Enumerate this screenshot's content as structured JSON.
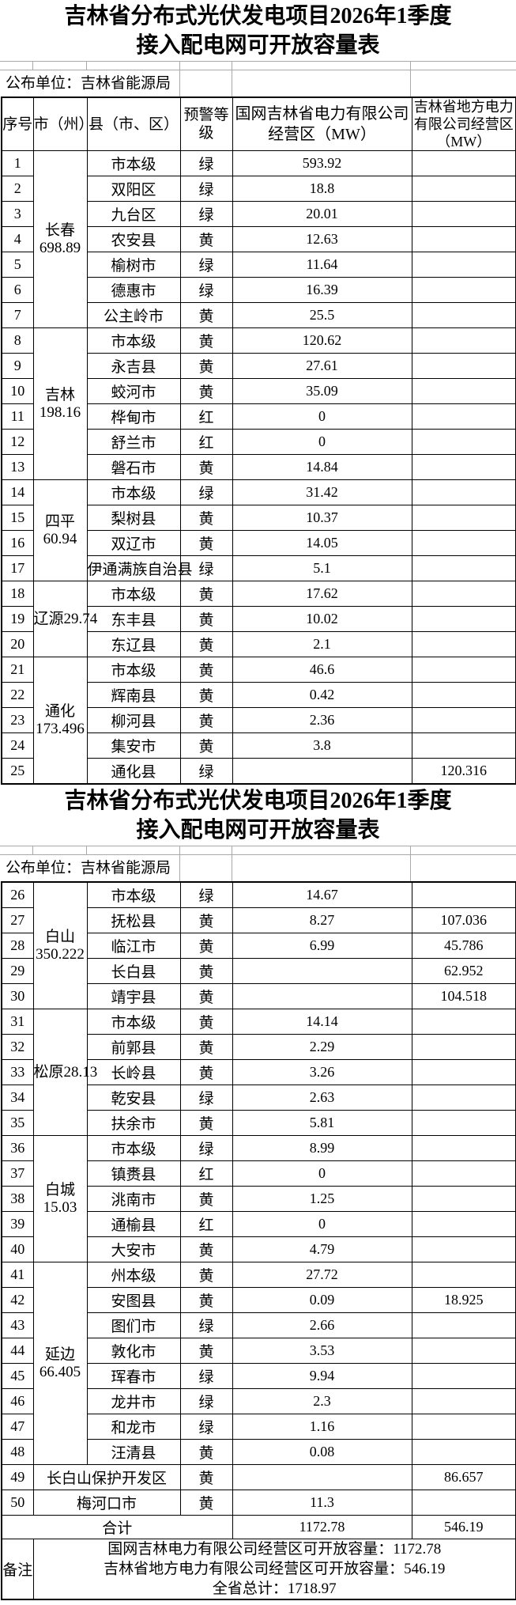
{
  "title": {
    "line1": "吉林省分布式光伏发电项目2026年1季度",
    "line2": "接入配电网可开放容量表"
  },
  "publisher": "公布单位：吉林省能源局",
  "columns": [
    "序号",
    "市（州）",
    "县（市、区）",
    "预警等级",
    "国网吉林省电力有限公司经营区（MW）",
    "吉林省地方电力有限公司经营区（MW）"
  ],
  "sections": [
    {
      "rows": [
        {
          "no": "1",
          "city": [
            "长春",
            "698.89"
          ],
          "span": 7,
          "county": "市本级",
          "level": "绿",
          "grid": "593.92",
          "local": ""
        },
        {
          "no": "2",
          "county": "双阳区",
          "level": "绿",
          "grid": "18.8",
          "local": ""
        },
        {
          "no": "3",
          "county": "九台区",
          "level": "绿",
          "grid": "20.01",
          "local": ""
        },
        {
          "no": "4",
          "county": "农安县",
          "level": "黄",
          "grid": "12.63",
          "local": ""
        },
        {
          "no": "5",
          "county": "榆树市",
          "level": "绿",
          "grid": "11.64",
          "local": ""
        },
        {
          "no": "6",
          "county": "德惠市",
          "level": "绿",
          "grid": "16.39",
          "local": ""
        },
        {
          "no": "7",
          "county": "公主岭市",
          "level": "黄",
          "grid": "25.5",
          "local": ""
        },
        {
          "no": "8",
          "city": [
            "吉林",
            "198.16"
          ],
          "span": 6,
          "county": "市本级",
          "level": "黄",
          "grid": "120.62",
          "local": ""
        },
        {
          "no": "9",
          "county": "永吉县",
          "level": "黄",
          "grid": "27.61",
          "local": ""
        },
        {
          "no": "10",
          "county": "蛟河市",
          "level": "黄",
          "grid": "35.09",
          "local": ""
        },
        {
          "no": "11",
          "county": "桦甸市",
          "level": "红",
          "grid": "0",
          "local": ""
        },
        {
          "no": "12",
          "county": "舒兰市",
          "level": "红",
          "grid": "0",
          "local": ""
        },
        {
          "no": "13",
          "county": "磐石市",
          "level": "黄",
          "grid": "14.84",
          "local": ""
        },
        {
          "no": "14",
          "city": [
            "四平",
            "60.94"
          ],
          "span": 4,
          "county": "市本级",
          "level": "绿",
          "grid": "31.42",
          "local": ""
        },
        {
          "no": "15",
          "county": "梨树县",
          "level": "黄",
          "grid": "10.37",
          "local": ""
        },
        {
          "no": "16",
          "county": "双辽市",
          "level": "黄",
          "grid": "14.05",
          "local": ""
        },
        {
          "no": "17",
          "county": "伊通满族自治县",
          "level": "绿",
          "grid": "5.1",
          "local": ""
        },
        {
          "no": "18",
          "city": [
            "辽源29.74"
          ],
          "span": 3,
          "county": "市本级",
          "level": "黄",
          "grid": "17.62",
          "local": ""
        },
        {
          "no": "19",
          "county": "东丰县",
          "level": "黄",
          "grid": "10.02",
          "local": ""
        },
        {
          "no": "20",
          "county": "东辽县",
          "level": "黄",
          "grid": "2.1",
          "local": ""
        },
        {
          "no": "21",
          "city": [
            "通化",
            "173.496"
          ],
          "span": 5,
          "county": "市本级",
          "level": "黄",
          "grid": "46.6",
          "local": ""
        },
        {
          "no": "22",
          "county": "辉南县",
          "level": "黄",
          "grid": "0.42",
          "local": ""
        },
        {
          "no": "23",
          "county": "柳河县",
          "level": "黄",
          "grid": "2.36",
          "local": ""
        },
        {
          "no": "24",
          "county": "集安市",
          "level": "黄",
          "grid": "3.8",
          "local": ""
        },
        {
          "no": "25",
          "county": "通化县",
          "level": "绿",
          "grid": "",
          "local": "120.316"
        }
      ]
    },
    {
      "rows": [
        {
          "no": "26",
          "city": [
            "白山",
            "350.222"
          ],
          "span": 5,
          "county": "市本级",
          "level": "绿",
          "grid": "14.67",
          "local": ""
        },
        {
          "no": "27",
          "county": "抚松县",
          "level": "黄",
          "grid": "8.27",
          "local": "107.036"
        },
        {
          "no": "28",
          "county": "临江市",
          "level": "黄",
          "grid": "6.99",
          "local": "45.786"
        },
        {
          "no": "29",
          "county": "长白县",
          "level": "黄",
          "grid": "",
          "local": "62.952"
        },
        {
          "no": "30",
          "county": "靖宇县",
          "level": "黄",
          "grid": "",
          "local": "104.518"
        },
        {
          "no": "31",
          "city": [
            "松原28.13"
          ],
          "span": 5,
          "county": "市本级",
          "level": "黄",
          "grid": "14.14",
          "local": ""
        },
        {
          "no": "32",
          "county": "前郭县",
          "level": "黄",
          "grid": "2.29",
          "local": ""
        },
        {
          "no": "33",
          "county": "长岭县",
          "level": "黄",
          "grid": "3.26",
          "local": ""
        },
        {
          "no": "34",
          "county": "乾安县",
          "level": "绿",
          "grid": "2.63",
          "local": ""
        },
        {
          "no": "35",
          "county": "扶余市",
          "level": "黄",
          "grid": "5.81",
          "local": ""
        },
        {
          "no": "36",
          "city": [
            "白城",
            "15.03"
          ],
          "span": 5,
          "county": "市本级",
          "level": "绿",
          "grid": "8.99",
          "local": ""
        },
        {
          "no": "37",
          "county": "镇赉县",
          "level": "红",
          "grid": "0",
          "local": ""
        },
        {
          "no": "38",
          "county": "洮南市",
          "level": "黄",
          "grid": "1.25",
          "local": ""
        },
        {
          "no": "39",
          "county": "通榆县",
          "level": "红",
          "grid": "0",
          "local": ""
        },
        {
          "no": "40",
          "county": "大安市",
          "level": "黄",
          "grid": "4.79",
          "local": ""
        },
        {
          "no": "41",
          "city": [
            "延边",
            "66.405"
          ],
          "span": 8,
          "county": "州本级",
          "level": "黄",
          "grid": "27.72",
          "local": ""
        },
        {
          "no": "42",
          "county": "安图县",
          "level": "黄",
          "grid": "0.09",
          "local": "18.925"
        },
        {
          "no": "43",
          "county": "图们市",
          "level": "绿",
          "grid": "2.66",
          "local": ""
        },
        {
          "no": "44",
          "county": "敦化市",
          "level": "黄",
          "grid": "3.53",
          "local": ""
        },
        {
          "no": "45",
          "county": "珲春市",
          "level": "绿",
          "grid": "9.94",
          "local": ""
        },
        {
          "no": "46",
          "county": "龙井市",
          "level": "绿",
          "grid": "2.3",
          "local": ""
        },
        {
          "no": "47",
          "county": "和龙市",
          "level": "绿",
          "grid": "1.16",
          "local": ""
        },
        {
          "no": "48",
          "county": "汪清县",
          "level": "黄",
          "grid": "0.08",
          "local": ""
        },
        {
          "no": "49",
          "merged": true,
          "county": "长白山保护开发区",
          "level": "黄",
          "grid": "",
          "local": "86.657"
        },
        {
          "no": "50",
          "merged": true,
          "county": "梅河口市",
          "level": "黄",
          "grid": "11.3",
          "local": ""
        }
      ]
    }
  ],
  "total": {
    "label": "合计",
    "grid": "1172.78",
    "local": "546.19"
  },
  "remark": {
    "label": "备注",
    "lines": [
      "国网吉林电力有限公司经营区可开放容量：1172.78",
      "吉林省地方电力有限公司经营区可开放容量：546.19",
      "全省总计：1718.97"
    ]
  }
}
